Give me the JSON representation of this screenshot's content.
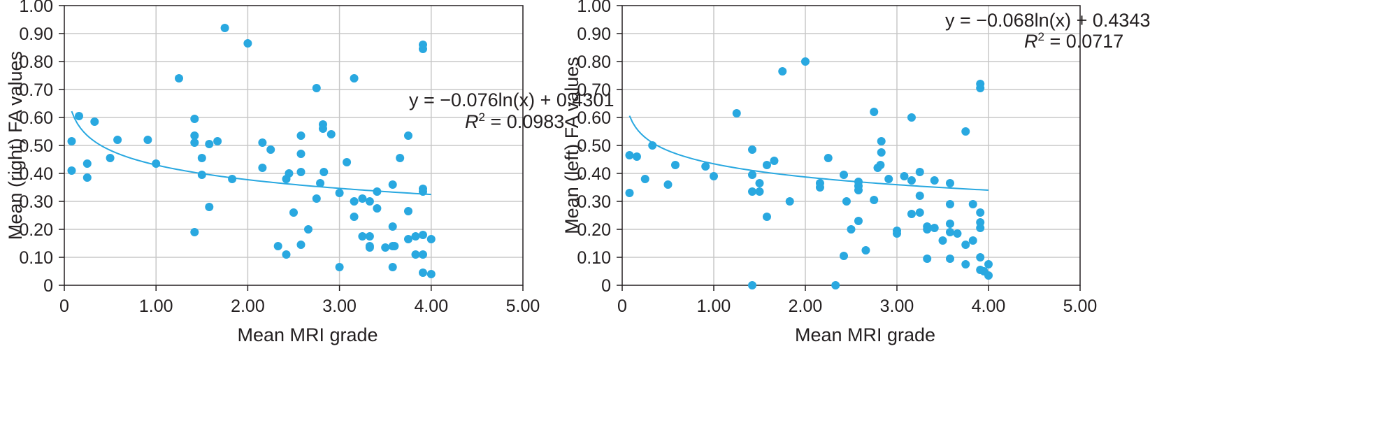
{
  "palette": {
    "point": "#29a8e0",
    "curve": "#29a8e0",
    "grid": "#c8c8c8",
    "frame": "#231f20",
    "text": "#231f20"
  },
  "chart_data": [
    {
      "type": "scatter",
      "title": "",
      "xlabel": "Mean MRI grade",
      "ylabel": "Mean (right) FA values",
      "xlim": [
        0,
        5
      ],
      "ylim": [
        0,
        1
      ],
      "x_ticks": [
        0,
        1,
        2,
        3,
        4,
        5
      ],
      "x_tick_labels": [
        "0",
        "1.00",
        "2.00",
        "3.00",
        "4.00",
        "5.00"
      ],
      "y_ticks": [
        0,
        0.1,
        0.2,
        0.3,
        0.4,
        0.5,
        0.6,
        0.7,
        0.8,
        0.9,
        1.0
      ],
      "y_tick_labels": [
        "0",
        "0.10",
        "0.20",
        "0.30",
        "0.40",
        "0.50",
        "0.60",
        "0.70",
        "0.80",
        "0.90",
        "1.00"
      ],
      "grid": true,
      "trendline": {
        "equation_text": "y = −0.076ln(x) + 0.4301",
        "r2_prefix": "R",
        "r2_sup": "2",
        "r2_value_text": " = 0.0983",
        "a": -0.076,
        "b": 0.4301,
        "x_range": [
          0.08,
          4.0
        ]
      },
      "points": [
        [
          0.08,
          0.515
        ],
        [
          0.08,
          0.41
        ],
        [
          0.16,
          0.605
        ],
        [
          0.25,
          0.385
        ],
        [
          0.25,
          0.435
        ],
        [
          0.33,
          0.585
        ],
        [
          0.5,
          0.455
        ],
        [
          0.58,
          0.52
        ],
        [
          0.91,
          0.52
        ],
        [
          1.0,
          0.435
        ],
        [
          1.25,
          0.74
        ],
        [
          1.42,
          0.595
        ],
        [
          1.42,
          0.535
        ],
        [
          1.42,
          0.51
        ],
        [
          1.42,
          0.19
        ],
        [
          1.5,
          0.455
        ],
        [
          1.5,
          0.395
        ],
        [
          1.58,
          0.505
        ],
        [
          1.58,
          0.28
        ],
        [
          1.67,
          0.515
        ],
        [
          1.75,
          0.92
        ],
        [
          1.83,
          0.38
        ],
        [
          2.0,
          0.865
        ],
        [
          2.16,
          0.51
        ],
        [
          2.16,
          0.42
        ],
        [
          2.25,
          0.485
        ],
        [
          2.33,
          0.14
        ],
        [
          2.42,
          0.38
        ],
        [
          2.42,
          0.11
        ],
        [
          2.45,
          0.4
        ],
        [
          2.5,
          0.26
        ],
        [
          2.58,
          0.535
        ],
        [
          2.58,
          0.47
        ],
        [
          2.58,
          0.405
        ],
        [
          2.58,
          0.145
        ],
        [
          2.66,
          0.2
        ],
        [
          2.75,
          0.705
        ],
        [
          2.75,
          0.31
        ],
        [
          2.79,
          0.365
        ],
        [
          2.82,
          0.575
        ],
        [
          2.82,
          0.56
        ],
        [
          2.83,
          0.405
        ],
        [
          2.91,
          0.54
        ],
        [
          3.0,
          0.33
        ],
        [
          3.0,
          0.065
        ],
        [
          3.08,
          0.44
        ],
        [
          3.16,
          0.74
        ],
        [
          3.16,
          0.3
        ],
        [
          3.16,
          0.245
        ],
        [
          3.25,
          0.31
        ],
        [
          3.25,
          0.175
        ],
        [
          3.33,
          0.3
        ],
        [
          3.33,
          0.175
        ],
        [
          3.33,
          0.135
        ],
        [
          3.41,
          0.335
        ],
        [
          3.41,
          0.275
        ],
        [
          3.5,
          0.135
        ],
        [
          3.58,
          0.36
        ],
        [
          3.58,
          0.21
        ],
        [
          3.58,
          0.14
        ],
        [
          3.58,
          0.065
        ],
        [
          3.66,
          0.455
        ],
        [
          3.75,
          0.535
        ],
        [
          3.75,
          0.265
        ],
        [
          3.75,
          0.165
        ],
        [
          3.83,
          0.175
        ],
        [
          3.83,
          0.11
        ],
        [
          3.91,
          0.86
        ],
        [
          3.91,
          0.845
        ],
        [
          3.91,
          0.345
        ],
        [
          3.91,
          0.335
        ],
        [
          3.91,
          0.18
        ],
        [
          3.91,
          0.11
        ],
        [
          3.91,
          0.045
        ],
        [
          4.0,
          0.165
        ],
        [
          4.0,
          0.04
        ],
        [
          3.6,
          0.14
        ],
        [
          3.33,
          0.14
        ]
      ]
    },
    {
      "type": "scatter",
      "title": "",
      "xlabel": "Mean MRI grade",
      "ylabel": "Mean (left) FA values",
      "xlim": [
        0,
        5
      ],
      "ylim": [
        0,
        1
      ],
      "x_ticks": [
        0,
        1,
        2,
        3,
        4,
        5
      ],
      "x_tick_labels": [
        "0",
        "1.00",
        "2.00",
        "3.00",
        "4.00",
        "5.00"
      ],
      "y_ticks": [
        0,
        0.1,
        0.2,
        0.3,
        0.4,
        0.5,
        0.6,
        0.7,
        0.8,
        0.9,
        1.0
      ],
      "y_tick_labels": [
        "0",
        "0.10",
        "0.20",
        "0.30",
        "0.40",
        "0.50",
        "0.60",
        "0.70",
        "0.80",
        "0.90",
        "1.00"
      ],
      "grid": true,
      "trendline": {
        "equation_text": "y = −0.068ln(x) + 0.4343",
        "r2_prefix": "R",
        "r2_sup": "2",
        "r2_value_text": " = 0.0717",
        "a": -0.068,
        "b": 0.4343,
        "x_range": [
          0.08,
          4.0
        ]
      },
      "points": [
        [
          0.08,
          0.465
        ],
        [
          0.08,
          0.33
        ],
        [
          0.16,
          0.46
        ],
        [
          0.25,
          0.38
        ],
        [
          0.33,
          0.5
        ],
        [
          0.5,
          0.36
        ],
        [
          0.58,
          0.43
        ],
        [
          0.91,
          0.425
        ],
        [
          1.0,
          0.39
        ],
        [
          1.25,
          0.615
        ],
        [
          1.42,
          0.485
        ],
        [
          1.42,
          0.395
        ],
        [
          1.42,
          0.335
        ],
        [
          1.42,
          0.0
        ],
        [
          1.5,
          0.365
        ],
        [
          1.5,
          0.335
        ],
        [
          1.58,
          0.245
        ],
        [
          1.58,
          0.43
        ],
        [
          1.66,
          0.445
        ],
        [
          1.75,
          0.765
        ],
        [
          1.83,
          0.3
        ],
        [
          2.0,
          0.8
        ],
        [
          2.16,
          0.365
        ],
        [
          2.16,
          0.35
        ],
        [
          2.25,
          0.455
        ],
        [
          2.33,
          0.0
        ],
        [
          2.42,
          0.395
        ],
        [
          2.42,
          0.105
        ],
        [
          2.45,
          0.3
        ],
        [
          2.5,
          0.2
        ],
        [
          2.58,
          0.37
        ],
        [
          2.58,
          0.355
        ],
        [
          2.58,
          0.34
        ],
        [
          2.58,
          0.23
        ],
        [
          2.66,
          0.125
        ],
        [
          2.75,
          0.62
        ],
        [
          2.75,
          0.305
        ],
        [
          2.79,
          0.42
        ],
        [
          2.82,
          0.43
        ],
        [
          2.83,
          0.515
        ],
        [
          2.83,
          0.475
        ],
        [
          2.91,
          0.38
        ],
        [
          3.0,
          0.195
        ],
        [
          3.0,
          0.185
        ],
        [
          3.08,
          0.39
        ],
        [
          3.16,
          0.6
        ],
        [
          3.16,
          0.375
        ],
        [
          3.16,
          0.255
        ],
        [
          3.25,
          0.405
        ],
        [
          3.25,
          0.32
        ],
        [
          3.25,
          0.26
        ],
        [
          3.33,
          0.21
        ],
        [
          3.33,
          0.2
        ],
        [
          3.33,
          0.095
        ],
        [
          3.41,
          0.205
        ],
        [
          3.41,
          0.375
        ],
        [
          3.5,
          0.16
        ],
        [
          3.58,
          0.365
        ],
        [
          3.58,
          0.29
        ],
        [
          3.58,
          0.22
        ],
        [
          3.58,
          0.19
        ],
        [
          3.58,
          0.095
        ],
        [
          3.66,
          0.185
        ],
        [
          3.75,
          0.55
        ],
        [
          3.75,
          0.145
        ],
        [
          3.75,
          0.075
        ],
        [
          3.83,
          0.29
        ],
        [
          3.83,
          0.16
        ],
        [
          3.91,
          0.72
        ],
        [
          3.91,
          0.705
        ],
        [
          3.91,
          0.26
        ],
        [
          3.91,
          0.225
        ],
        [
          3.91,
          0.205
        ],
        [
          3.91,
          0.1
        ],
        [
          3.91,
          0.055
        ],
        [
          3.95,
          0.05
        ],
        [
          4.0,
          0.075
        ],
        [
          4.0,
          0.035
        ]
      ]
    }
  ]
}
